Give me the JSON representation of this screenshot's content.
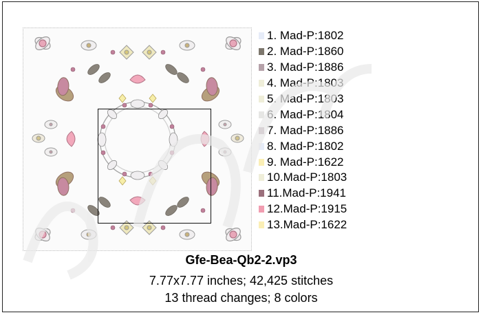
{
  "file_name": "Gfe-Bea-Qb2-2.vp3",
  "size_stitches": "7.77x7.77 inches; 42,425 stitches",
  "changes_colors": "13 thread changes; 8 colors",
  "threads": [
    {
      "label": "1.  Mad-P:1802",
      "color": "#e6ecf8"
    },
    {
      "label": "2.  Mad-P:1860",
      "color": "#7d776d"
    },
    {
      "label": "3.  Mad-P:1886",
      "color": "#b5a1a9"
    },
    {
      "label": "4.  Mad-P:1803",
      "color": "#efeed9"
    },
    {
      "label": "5.  Mad-P:1803",
      "color": "#efeed9"
    },
    {
      "label": "6.  Mad-P:1804",
      "color": "#e6e6e4"
    },
    {
      "label": "7.  Mad-P:1886",
      "color": "#b5a1a9"
    },
    {
      "label": "8.  Mad-P:1802",
      "color": "#e6ecf8"
    },
    {
      "label": "9.  Mad-P:1622",
      "color": "#fbefb5"
    },
    {
      "label": "10.Mad-P:1803",
      "color": "#efeed9"
    },
    {
      "label": "11.Mad-P:1941",
      "color": "#9b707c"
    },
    {
      "label": "12.Mad-P:1915",
      "color": "#f19db1"
    },
    {
      "label": "13.Mad-P:1622",
      "color": "#fbefb5"
    }
  ]
}
